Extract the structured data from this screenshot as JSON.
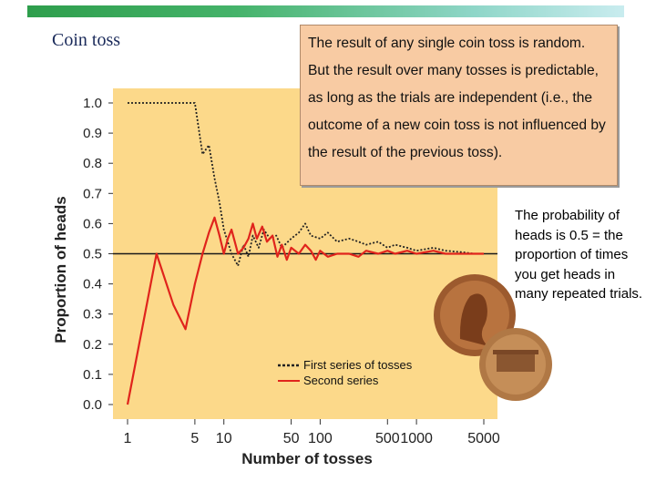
{
  "slide": {
    "title": "Coin toss",
    "callout_text": "The result of any single coin toss is random.  But the result over many tosses is predictable, as long as the trials are independent (i.e., the outcome of a new coin toss is not influenced by the result of the previous toss).",
    "side_note": "The probability of heads is 0.5 = the proportion of times you get heads in many repeated trials.",
    "colors": {
      "panel": "#fcd98a",
      "series1": "#222222",
      "series2": "#e0241c",
      "callout": "#f8cba3"
    }
  },
  "chart_data": {
    "type": "line",
    "title": "",
    "xlabel": "Number of tosses",
    "ylabel": "Proportion of heads",
    "x_scale": "log",
    "xlim": [
      1,
      6000
    ],
    "ylim": [
      0,
      1.0
    ],
    "x_ticks": [
      "1",
      "5",
      "10",
      "50",
      "100",
      "500",
      "1000",
      "5000"
    ],
    "y_ticks": [
      "0.0",
      "0.1",
      "0.2",
      "0.3",
      "0.4",
      "0.5",
      "0.6",
      "0.7",
      "0.8",
      "0.9",
      "1.0"
    ],
    "reference_line": 0.5,
    "series": [
      {
        "name": "First series of tosses",
        "style": "dotted",
        "x": [
          1,
          5,
          6,
          7,
          8,
          9,
          10,
          12,
          14,
          16,
          18,
          20,
          23,
          26,
          30,
          35,
          40,
          50,
          60,
          70,
          80,
          100,
          120,
          150,
          200,
          250,
          300,
          400,
          500,
          600,
          800,
          1000,
          1500,
          2000,
          3000,
          4000,
          5000
        ],
        "y": [
          1.0,
          1.0,
          0.83,
          0.86,
          0.75,
          0.67,
          0.58,
          0.5,
          0.46,
          0.53,
          0.49,
          0.56,
          0.52,
          0.58,
          0.55,
          0.56,
          0.52,
          0.55,
          0.57,
          0.6,
          0.56,
          0.55,
          0.57,
          0.54,
          0.55,
          0.54,
          0.53,
          0.54,
          0.52,
          0.53,
          0.52,
          0.51,
          0.52,
          0.51,
          0.505,
          0.5,
          0.5
        ]
      },
      {
        "name": "Second series",
        "style": "solid",
        "x": [
          1,
          2,
          3,
          4,
          5,
          6,
          7,
          8,
          9,
          10,
          11,
          12,
          13,
          14,
          16,
          18,
          20,
          22,
          25,
          28,
          32,
          36,
          40,
          45,
          50,
          60,
          70,
          80,
          90,
          100,
          120,
          150,
          200,
          250,
          300,
          400,
          500,
          600,
          800,
          1000,
          1500,
          2000,
          3000,
          4000,
          5000
        ],
        "y": [
          0.0,
          0.5,
          0.33,
          0.25,
          0.4,
          0.5,
          0.57,
          0.62,
          0.56,
          0.5,
          0.55,
          0.58,
          0.54,
          0.5,
          0.52,
          0.55,
          0.6,
          0.55,
          0.59,
          0.54,
          0.56,
          0.49,
          0.53,
          0.48,
          0.52,
          0.5,
          0.53,
          0.51,
          0.48,
          0.51,
          0.49,
          0.5,
          0.5,
          0.49,
          0.51,
          0.5,
          0.51,
          0.5,
          0.51,
          0.5,
          0.51,
          0.5,
          0.5,
          0.5,
          0.5
        ]
      }
    ]
  }
}
